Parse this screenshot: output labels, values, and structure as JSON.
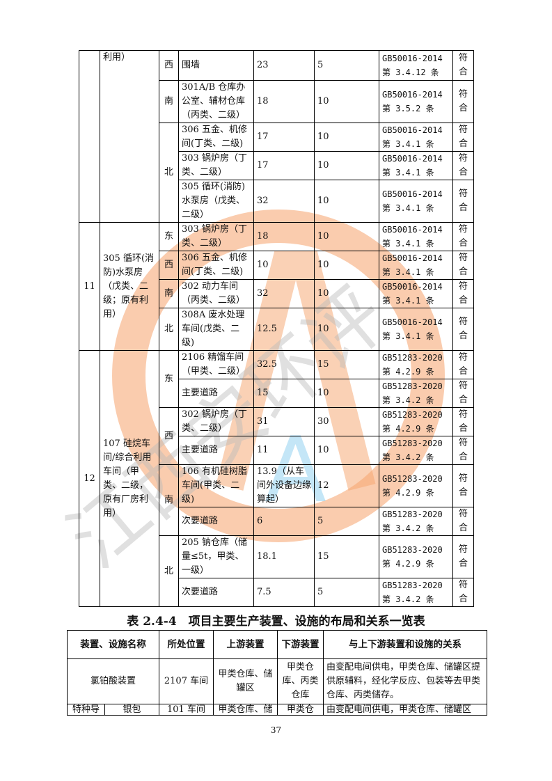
{
  "watermark": {
    "text": "江西安环评",
    "colors": {
      "ring": "#f6a36b",
      "letter": "#7cc8ee",
      "text": "#c8c8c8"
    }
  },
  "table1": {
    "groups": [
      {
        "no": "",
        "name": "利用）",
        "directions": [
          {
            "dir": "西",
            "rows": [
              {
                "building": "围墙",
                "actual": "23",
                "required": "5",
                "standard": "GB50016-2014 第 3.4.12 条",
                "result": "符合"
              }
            ]
          },
          {
            "dir": "南",
            "rows": [
              {
                "building": "301A/B 仓库办公室、辅材仓库（丙类、二级）",
                "actual": "18",
                "required": "10",
                "standard": "GB50016-2014 第 3.5.2 条",
                "result": "符合"
              }
            ]
          },
          {
            "dir": "北",
            "rows": [
              {
                "building": "306 五金、机修间(丁类、二级)",
                "actual": "17",
                "required": "10",
                "standard": "GB50016-2014 第 3.4.1 条",
                "result": "符合"
              },
              {
                "building": "303 锅炉房（丁类、二级）",
                "actual": "17",
                "required": "10",
                "standard": "GB50016-2014 第 3.4.1 条",
                "result": "符合"
              },
              {
                "building": "305 循环(消防)水泵房（戊类、二级）",
                "actual": "32",
                "required": "10",
                "standard": "GB50016-2014 第 3.4.1 条",
                "result": "符合"
              }
            ]
          }
        ]
      },
      {
        "no": "11",
        "name": "305 循环(消防)水泵房（戊类、二级；原有利用）",
        "directions": [
          {
            "dir": "东",
            "rows": [
              {
                "building": "303 锅炉房（丁类、二级）",
                "actual": "18",
                "required": "10",
                "standard": "GB50016-2014 第 3.4.1 条",
                "result": "符合"
              }
            ]
          },
          {
            "dir": "西",
            "rows": [
              {
                "building": "306 五金、机修间(丁类、二级)",
                "actual": "10",
                "required": "10",
                "standard": "GB50016-2014 第 3.4.1 条",
                "result": "符合"
              }
            ]
          },
          {
            "dir": "南",
            "rows": [
              {
                "building": "302 动力车间（丙类、二级）",
                "actual": "32",
                "required": "10",
                "standard": "GB50016-2014 第 3.4.1 条",
                "result": "符合"
              }
            ]
          },
          {
            "dir": "北",
            "rows": [
              {
                "building": "308A 废水处理车间(戊类、二级)",
                "actual": "12.5",
                "required": "10",
                "standard": "GB50016-2014 第 3.4.1 条",
                "result": "符合"
              }
            ]
          }
        ]
      },
      {
        "no": "12",
        "name": "107 硅烷车间/综合利用车间（甲类、二级，原有厂房利用）",
        "directions": [
          {
            "dir": "东",
            "rows": [
              {
                "building": "2106 精馏车间（甲类、二级）",
                "actual": "32.5",
                "required": "15",
                "standard": "GB51283-2020 第 4.2.9 条",
                "result": "符合"
              },
              {
                "building": "主要道路",
                "actual": "15",
                "required": "10",
                "standard": "GB51283-2020 第 3.4.2 条",
                "result": "符合"
              }
            ]
          },
          {
            "dir": "西",
            "rows": [
              {
                "building": "302 锅炉房（丁类、二级）",
                "actual": "31",
                "required": "30",
                "standard": "GB51283-2020 第 4.2.9 条",
                "result": "符合"
              },
              {
                "building": "主要道路",
                "actual": "11",
                "required": "10",
                "standard": "GB51283-2020 第 3.4.2 条",
                "result": "符合"
              }
            ]
          },
          {
            "dir": "南",
            "rows": [
              {
                "building": "106 有机硅树脂车间(甲类、二级)",
                "actual": "13.9（从车间外设备边缘算起）",
                "required": "12",
                "standard": "GB51283-2020 第 4.2.9 条",
                "result": "符合"
              },
              {
                "building": "次要道路",
                "actual": "6",
                "required": "5",
                "standard": "GB51283-2020 第 3.4.2 条",
                "result": "符合"
              }
            ]
          },
          {
            "dir": "北",
            "rows": [
              {
                "building": "205 钠仓库（储量≤5t，甲类、一级）",
                "actual": "18.1",
                "required": "15",
                "standard": "GB51283-2020 第 4.2.9 条",
                "result": "符合"
              },
              {
                "building": "次要道路",
                "actual": "7.5",
                "required": "5",
                "standard": "GB51283-2020 第 3.4.2 条",
                "result": "符合"
              }
            ]
          }
        ]
      }
    ]
  },
  "table2": {
    "title": "表 2.4-4　项目主要生产装置、设施的布局和关系一览表",
    "headers": [
      "装置、设施名称",
      "所处位置",
      "上游装置",
      "下游装置",
      "与上下游装置和设施的关系"
    ],
    "rows": [
      {
        "name": "氯铂酸装置",
        "location": "2107 车间",
        "upstream": "甲类仓库、储罐区",
        "downstream": "甲类仓库、丙类仓库",
        "relation": "由变配电间供电，甲类仓库、储罐区提供原辅料，经化学反应、包装等去甲类仓库、丙类储存。"
      },
      {
        "category": "特种导",
        "name": "银包",
        "location": "101 车间",
        "upstream": "甲类仓库、储",
        "downstream": "甲类仓",
        "relation": "由变配电间供电，甲类仓库、储罐区"
      }
    ]
  },
  "page_number": "37"
}
